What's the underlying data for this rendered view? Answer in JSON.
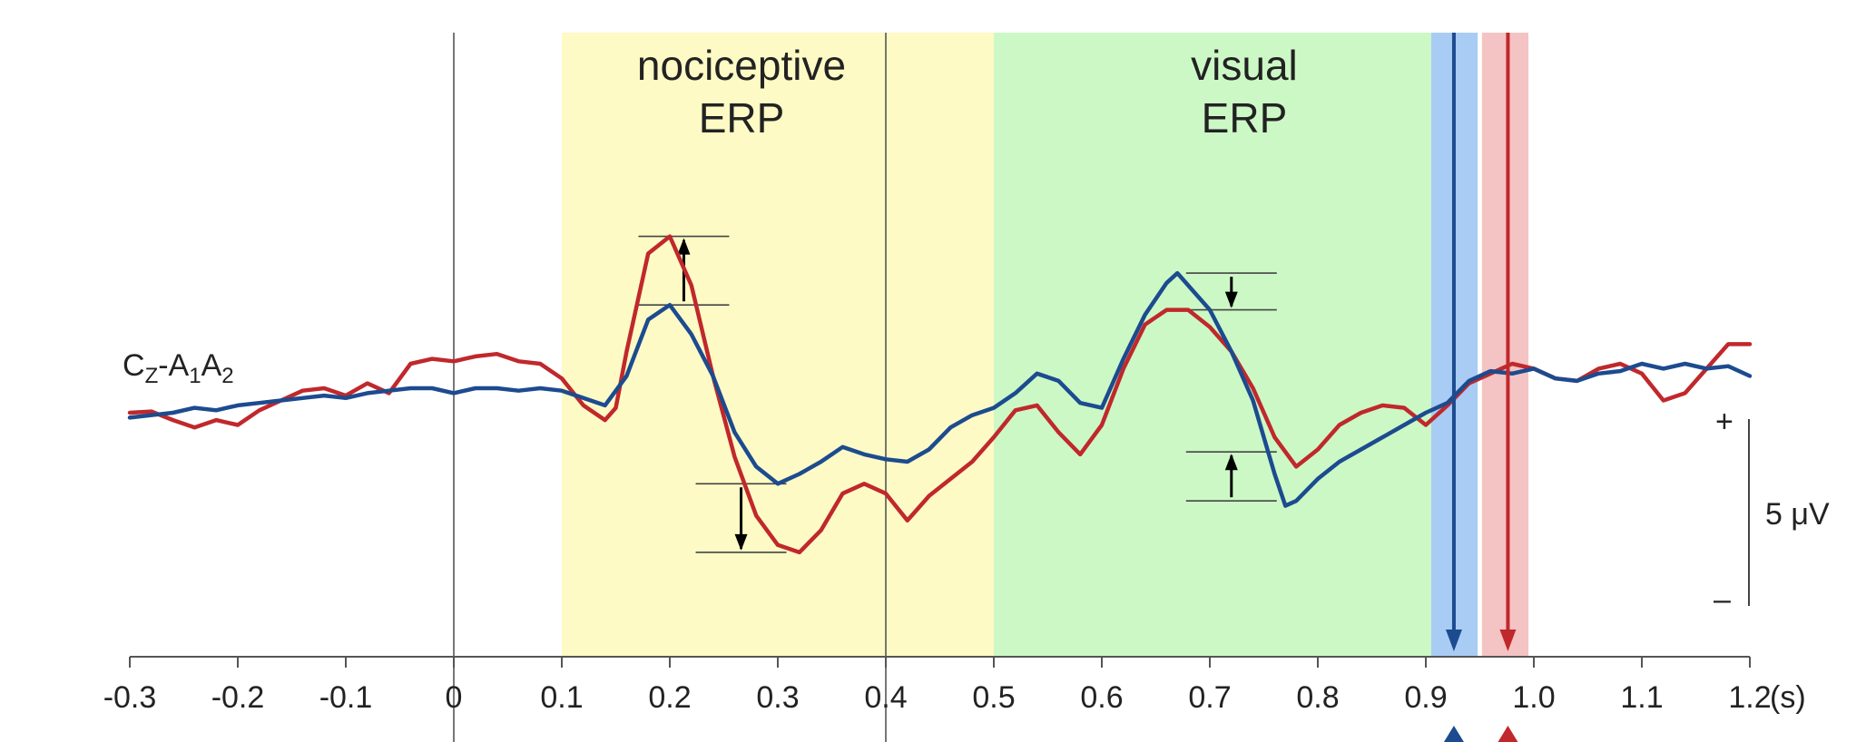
{
  "chart_data": {
    "type": "line",
    "xlabel": "(s)",
    "xlim": [
      -0.3,
      1.2
    ],
    "x_ticks": [
      "-0.3",
      "-0.2",
      "-0.1",
      "0",
      "0.1",
      "0.2",
      "0.3",
      "0.4",
      "0.5",
      "0.6",
      "0.7",
      "0.8",
      "0.9",
      "1.0",
      "1.1",
      "1.2"
    ],
    "ylim_uV": [
      -8,
      10
    ],
    "channel_label": {
      "main": "C",
      "sub1": "Z",
      "mid1": "-A",
      "sub2": "1",
      "mid2": "A",
      "sub3": "2"
    },
    "scale_bar": {
      "label": "5 μV",
      "plus": "+",
      "minus": "–",
      "value_uV": 5
    },
    "regions": [
      {
        "x0": 0.1,
        "x1": 0.5,
        "color": "#fdfac5",
        "title_line1": "nociceptive",
        "title_line2": "ERP"
      },
      {
        "x0": 0.5,
        "x1": 0.905,
        "color": "#ccf8c6",
        "title_line1": "visual",
        "title_line2": "ERP"
      }
    ],
    "response_bands": [
      {
        "x0": 0.905,
        "x1": 0.948,
        "color": "#a9ccf5"
      },
      {
        "x0": 0.952,
        "x1": 0.995,
        "color": "#f4c3c3"
      }
    ],
    "vertical_lines": [
      0,
      0.4
    ],
    "response_markers": [
      {
        "x": 0.926,
        "color": "#1c4b8f"
      },
      {
        "x": 0.976,
        "color": "#c0282c"
      }
    ],
    "series": [
      {
        "color": "#c0282c",
        "points": [
          [
            -0.3,
            0.0
          ],
          [
            -0.28,
            0.05
          ],
          [
            -0.26,
            -0.3
          ],
          [
            -0.24,
            -0.6
          ],
          [
            -0.22,
            -0.3
          ],
          [
            -0.2,
            -0.5
          ],
          [
            -0.18,
            0.1
          ],
          [
            -0.16,
            0.5
          ],
          [
            -0.14,
            0.9
          ],
          [
            -0.12,
            1.0
          ],
          [
            -0.1,
            0.7
          ],
          [
            -0.08,
            1.2
          ],
          [
            -0.06,
            0.8
          ],
          [
            -0.04,
            2.0
          ],
          [
            -0.02,
            2.2
          ],
          [
            0.0,
            2.1
          ],
          [
            0.02,
            2.3
          ],
          [
            0.04,
            2.4
          ],
          [
            0.06,
            2.1
          ],
          [
            0.08,
            2.0
          ],
          [
            0.1,
            1.4
          ],
          [
            0.12,
            0.3
          ],
          [
            0.14,
            -0.3
          ],
          [
            0.15,
            0.2
          ],
          [
            0.16,
            2.5
          ],
          [
            0.18,
            6.5
          ],
          [
            0.2,
            7.2
          ],
          [
            0.22,
            5.2
          ],
          [
            0.24,
            1.5
          ],
          [
            0.26,
            -1.8
          ],
          [
            0.28,
            -4.2
          ],
          [
            0.3,
            -5.4
          ],
          [
            0.32,
            -5.7
          ],
          [
            0.34,
            -4.8
          ],
          [
            0.36,
            -3.3
          ],
          [
            0.38,
            -2.9
          ],
          [
            0.4,
            -3.3
          ],
          [
            0.42,
            -4.4
          ],
          [
            0.44,
            -3.4
          ],
          [
            0.46,
            -2.7
          ],
          [
            0.48,
            -2.0
          ],
          [
            0.5,
            -1.0
          ],
          [
            0.52,
            0.1
          ],
          [
            0.54,
            0.3
          ],
          [
            0.56,
            -0.8
          ],
          [
            0.58,
            -1.7
          ],
          [
            0.6,
            -0.5
          ],
          [
            0.62,
            1.8
          ],
          [
            0.64,
            3.6
          ],
          [
            0.66,
            4.2
          ],
          [
            0.68,
            4.2
          ],
          [
            0.7,
            3.5
          ],
          [
            0.72,
            2.5
          ],
          [
            0.74,
            1.0
          ],
          [
            0.76,
            -1.0
          ],
          [
            0.78,
            -2.2
          ],
          [
            0.8,
            -1.5
          ],
          [
            0.82,
            -0.5
          ],
          [
            0.84,
            0.0
          ],
          [
            0.86,
            0.3
          ],
          [
            0.88,
            0.2
          ],
          [
            0.9,
            -0.5
          ],
          [
            0.92,
            0.3
          ],
          [
            0.94,
            1.2
          ],
          [
            0.96,
            1.6
          ],
          [
            0.98,
            2.0
          ],
          [
            1.0,
            1.8
          ],
          [
            1.02,
            1.4
          ],
          [
            1.04,
            1.3
          ],
          [
            1.06,
            1.8
          ],
          [
            1.08,
            2.0
          ],
          [
            1.1,
            1.6
          ],
          [
            1.12,
            0.5
          ],
          [
            1.14,
            0.8
          ],
          [
            1.16,
            1.8
          ],
          [
            1.18,
            2.8
          ],
          [
            1.2,
            2.8
          ]
        ]
      },
      {
        "color": "#1c4b8f",
        "points": [
          [
            -0.3,
            -0.2
          ],
          [
            -0.28,
            -0.1
          ],
          [
            -0.26,
            0.0
          ],
          [
            -0.24,
            0.2
          ],
          [
            -0.22,
            0.1
          ],
          [
            -0.2,
            0.3
          ],
          [
            -0.18,
            0.4
          ],
          [
            -0.16,
            0.5
          ],
          [
            -0.14,
            0.6
          ],
          [
            -0.12,
            0.7
          ],
          [
            -0.1,
            0.6
          ],
          [
            -0.08,
            0.8
          ],
          [
            -0.06,
            0.9
          ],
          [
            -0.04,
            1.0
          ],
          [
            -0.02,
            1.0
          ],
          [
            0.0,
            0.8
          ],
          [
            0.02,
            1.0
          ],
          [
            0.04,
            1.0
          ],
          [
            0.06,
            0.9
          ],
          [
            0.08,
            1.0
          ],
          [
            0.1,
            0.9
          ],
          [
            0.12,
            0.6
          ],
          [
            0.14,
            0.3
          ],
          [
            0.16,
            1.5
          ],
          [
            0.18,
            3.8
          ],
          [
            0.2,
            4.4
          ],
          [
            0.22,
            3.2
          ],
          [
            0.24,
            1.5
          ],
          [
            0.26,
            -0.8
          ],
          [
            0.28,
            -2.2
          ],
          [
            0.3,
            -2.9
          ],
          [
            0.32,
            -2.5
          ],
          [
            0.34,
            -2.0
          ],
          [
            0.36,
            -1.4
          ],
          [
            0.38,
            -1.7
          ],
          [
            0.4,
            -1.9
          ],
          [
            0.42,
            -2.0
          ],
          [
            0.44,
            -1.5
          ],
          [
            0.46,
            -0.6
          ],
          [
            0.48,
            -0.1
          ],
          [
            0.5,
            0.2
          ],
          [
            0.52,
            0.8
          ],
          [
            0.54,
            1.6
          ],
          [
            0.56,
            1.3
          ],
          [
            0.58,
            0.4
          ],
          [
            0.6,
            0.2
          ],
          [
            0.62,
            2.2
          ],
          [
            0.64,
            4.0
          ],
          [
            0.66,
            5.3
          ],
          [
            0.67,
            5.7
          ],
          [
            0.68,
            5.2
          ],
          [
            0.7,
            4.2
          ],
          [
            0.72,
            2.5
          ],
          [
            0.74,
            0.5
          ],
          [
            0.76,
            -2.5
          ],
          [
            0.77,
            -3.8
          ],
          [
            0.78,
            -3.6
          ],
          [
            0.8,
            -2.7
          ],
          [
            0.82,
            -2.0
          ],
          [
            0.84,
            -1.5
          ],
          [
            0.86,
            -1.0
          ],
          [
            0.88,
            -0.5
          ],
          [
            0.9,
            0.0
          ],
          [
            0.92,
            0.4
          ],
          [
            0.94,
            1.3
          ],
          [
            0.96,
            1.7
          ],
          [
            0.98,
            1.6
          ],
          [
            1.0,
            1.8
          ],
          [
            1.02,
            1.4
          ],
          [
            1.04,
            1.3
          ],
          [
            1.06,
            1.6
          ],
          [
            1.08,
            1.7
          ],
          [
            1.1,
            2.0
          ],
          [
            1.12,
            1.8
          ],
          [
            1.14,
            2.0
          ],
          [
            1.16,
            1.8
          ],
          [
            1.18,
            1.9
          ],
          [
            1.2,
            1.5
          ]
        ]
      }
    ]
  }
}
